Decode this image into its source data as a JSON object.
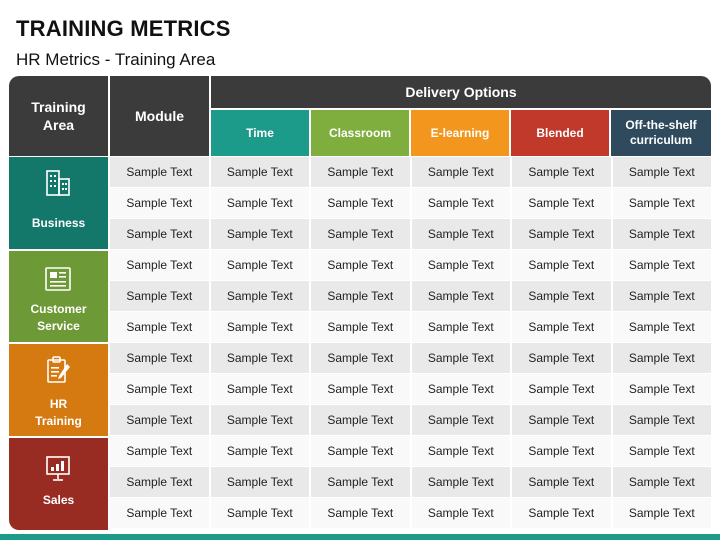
{
  "title": "TRAINING METRICS",
  "subtitle": "HR Metrics - Training Area",
  "table": {
    "area_header": "Training Area",
    "module_header": "Module",
    "delivery_header": "Delivery Options",
    "options": [
      {
        "label": "Time",
        "color": "#1c9a8a"
      },
      {
        "label": "Classroom",
        "color": "#7fad3e"
      },
      {
        "label": "E-learning",
        "color": "#f3961e"
      },
      {
        "label": "Blended",
        "color": "#c0392b"
      },
      {
        "label": "Off-the-shelf curriculum",
        "color": "#2f4a5c"
      }
    ],
    "areas": [
      {
        "label": "Business",
        "color": "#13776a",
        "icon": "building-icon"
      },
      {
        "label": "Customer Service",
        "color": "#6d9a36",
        "icon": "document-icon"
      },
      {
        "label": "HR Training",
        "color": "#d47a10",
        "icon": "clipboard-pen-icon"
      },
      {
        "label": "Sales",
        "color": "#982b22",
        "icon": "presentation-chart-icon"
      }
    ],
    "rows": [
      [
        "Sample Text",
        "Sample Text",
        "Sample Text",
        "Sample Text",
        "Sample Text",
        "Sample Text"
      ],
      [
        "Sample Text",
        "Sample Text",
        "Sample Text",
        "Sample Text",
        "Sample Text",
        "Sample Text"
      ],
      [
        "Sample Text",
        "Sample Text",
        "Sample Text",
        "Sample Text",
        "Sample Text",
        "Sample Text"
      ],
      [
        "Sample Text",
        "Sample Text",
        "Sample Text",
        "Sample Text",
        "Sample Text",
        "Sample Text"
      ],
      [
        "Sample Text",
        "Sample Text",
        "Sample Text",
        "Sample Text",
        "Sample Text",
        "Sample Text"
      ],
      [
        "Sample Text",
        "Sample Text",
        "Sample Text",
        "Sample Text",
        "Sample Text",
        "Sample Text"
      ],
      [
        "Sample Text",
        "Sample Text",
        "Sample Text",
        "Sample Text",
        "Sample Text",
        "Sample Text"
      ],
      [
        "Sample Text",
        "Sample Text",
        "Sample Text",
        "Sample Text",
        "Sample Text",
        "Sample Text"
      ],
      [
        "Sample Text",
        "Sample Text",
        "Sample Text",
        "Sample Text",
        "Sample Text",
        "Sample Text"
      ],
      [
        "Sample Text",
        "Sample Text",
        "Sample Text",
        "Sample Text",
        "Sample Text",
        "Sample Text"
      ],
      [
        "Sample Text",
        "Sample Text",
        "Sample Text",
        "Sample Text",
        "Sample Text",
        "Sample Text"
      ],
      [
        "Sample Text",
        "Sample Text",
        "Sample Text",
        "Sample Text",
        "Sample Text",
        "Sample Text"
      ]
    ]
  }
}
